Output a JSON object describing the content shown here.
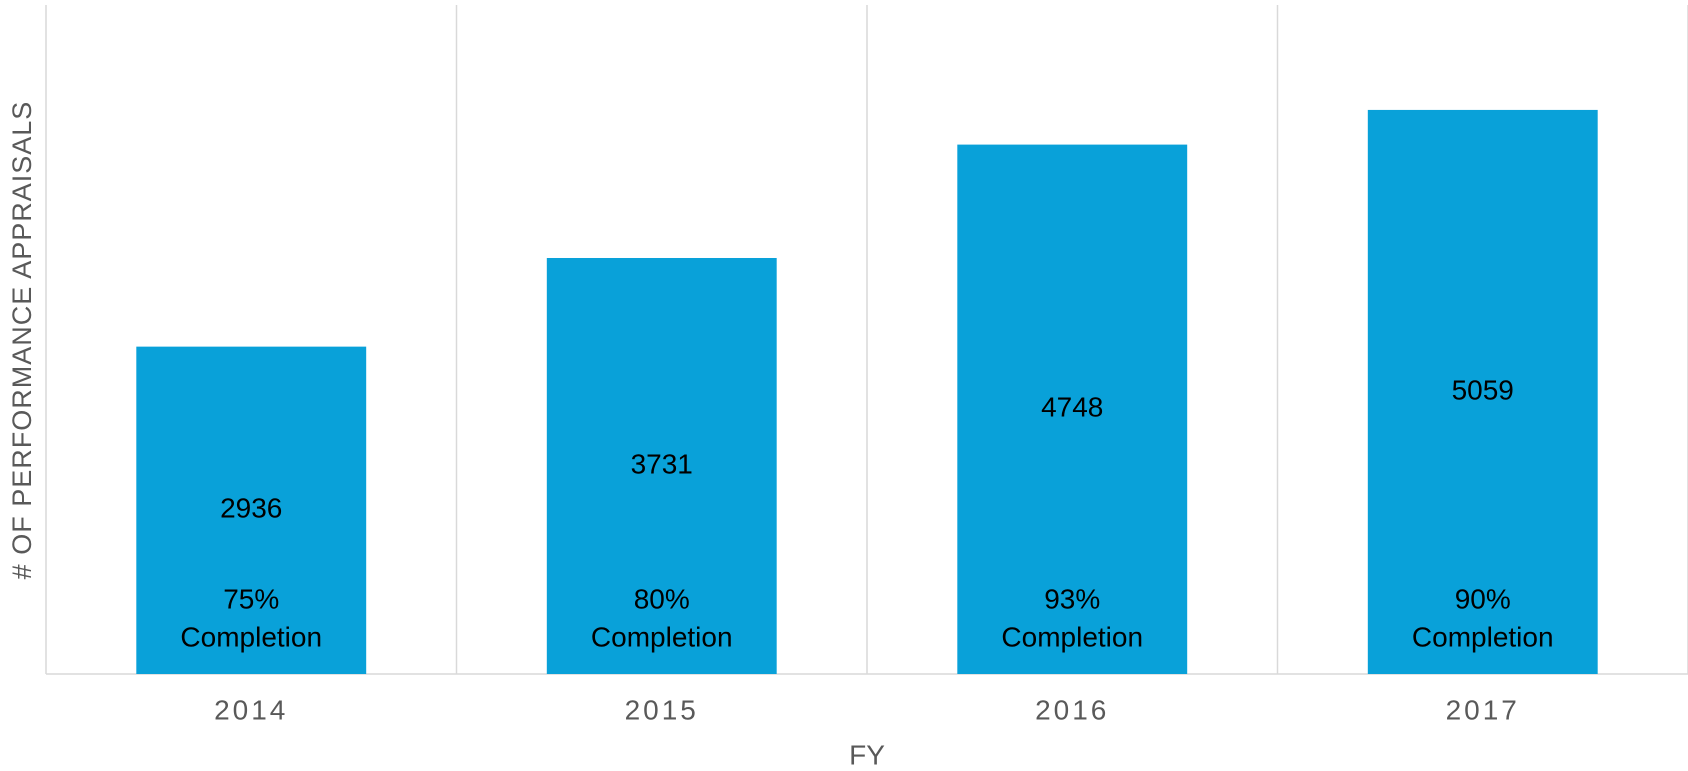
{
  "chart_data": {
    "type": "bar",
    "x_label": "FY",
    "y_label": "# OF PERFORMANCE APPRAISALS",
    "categories": [
      "2014",
      "2015",
      "2016",
      "2017"
    ],
    "values": [
      2936,
      3731,
      4748,
      5059
    ],
    "completion_labels": [
      [
        "75%",
        "Completion"
      ],
      [
        "80%",
        "Completion"
      ],
      [
        "93%",
        "Completion"
      ],
      [
        "90%",
        "Completion"
      ]
    ],
    "color": "#09a1d9",
    "ylim": [
      0,
      6000
    ],
    "grid": true
  }
}
